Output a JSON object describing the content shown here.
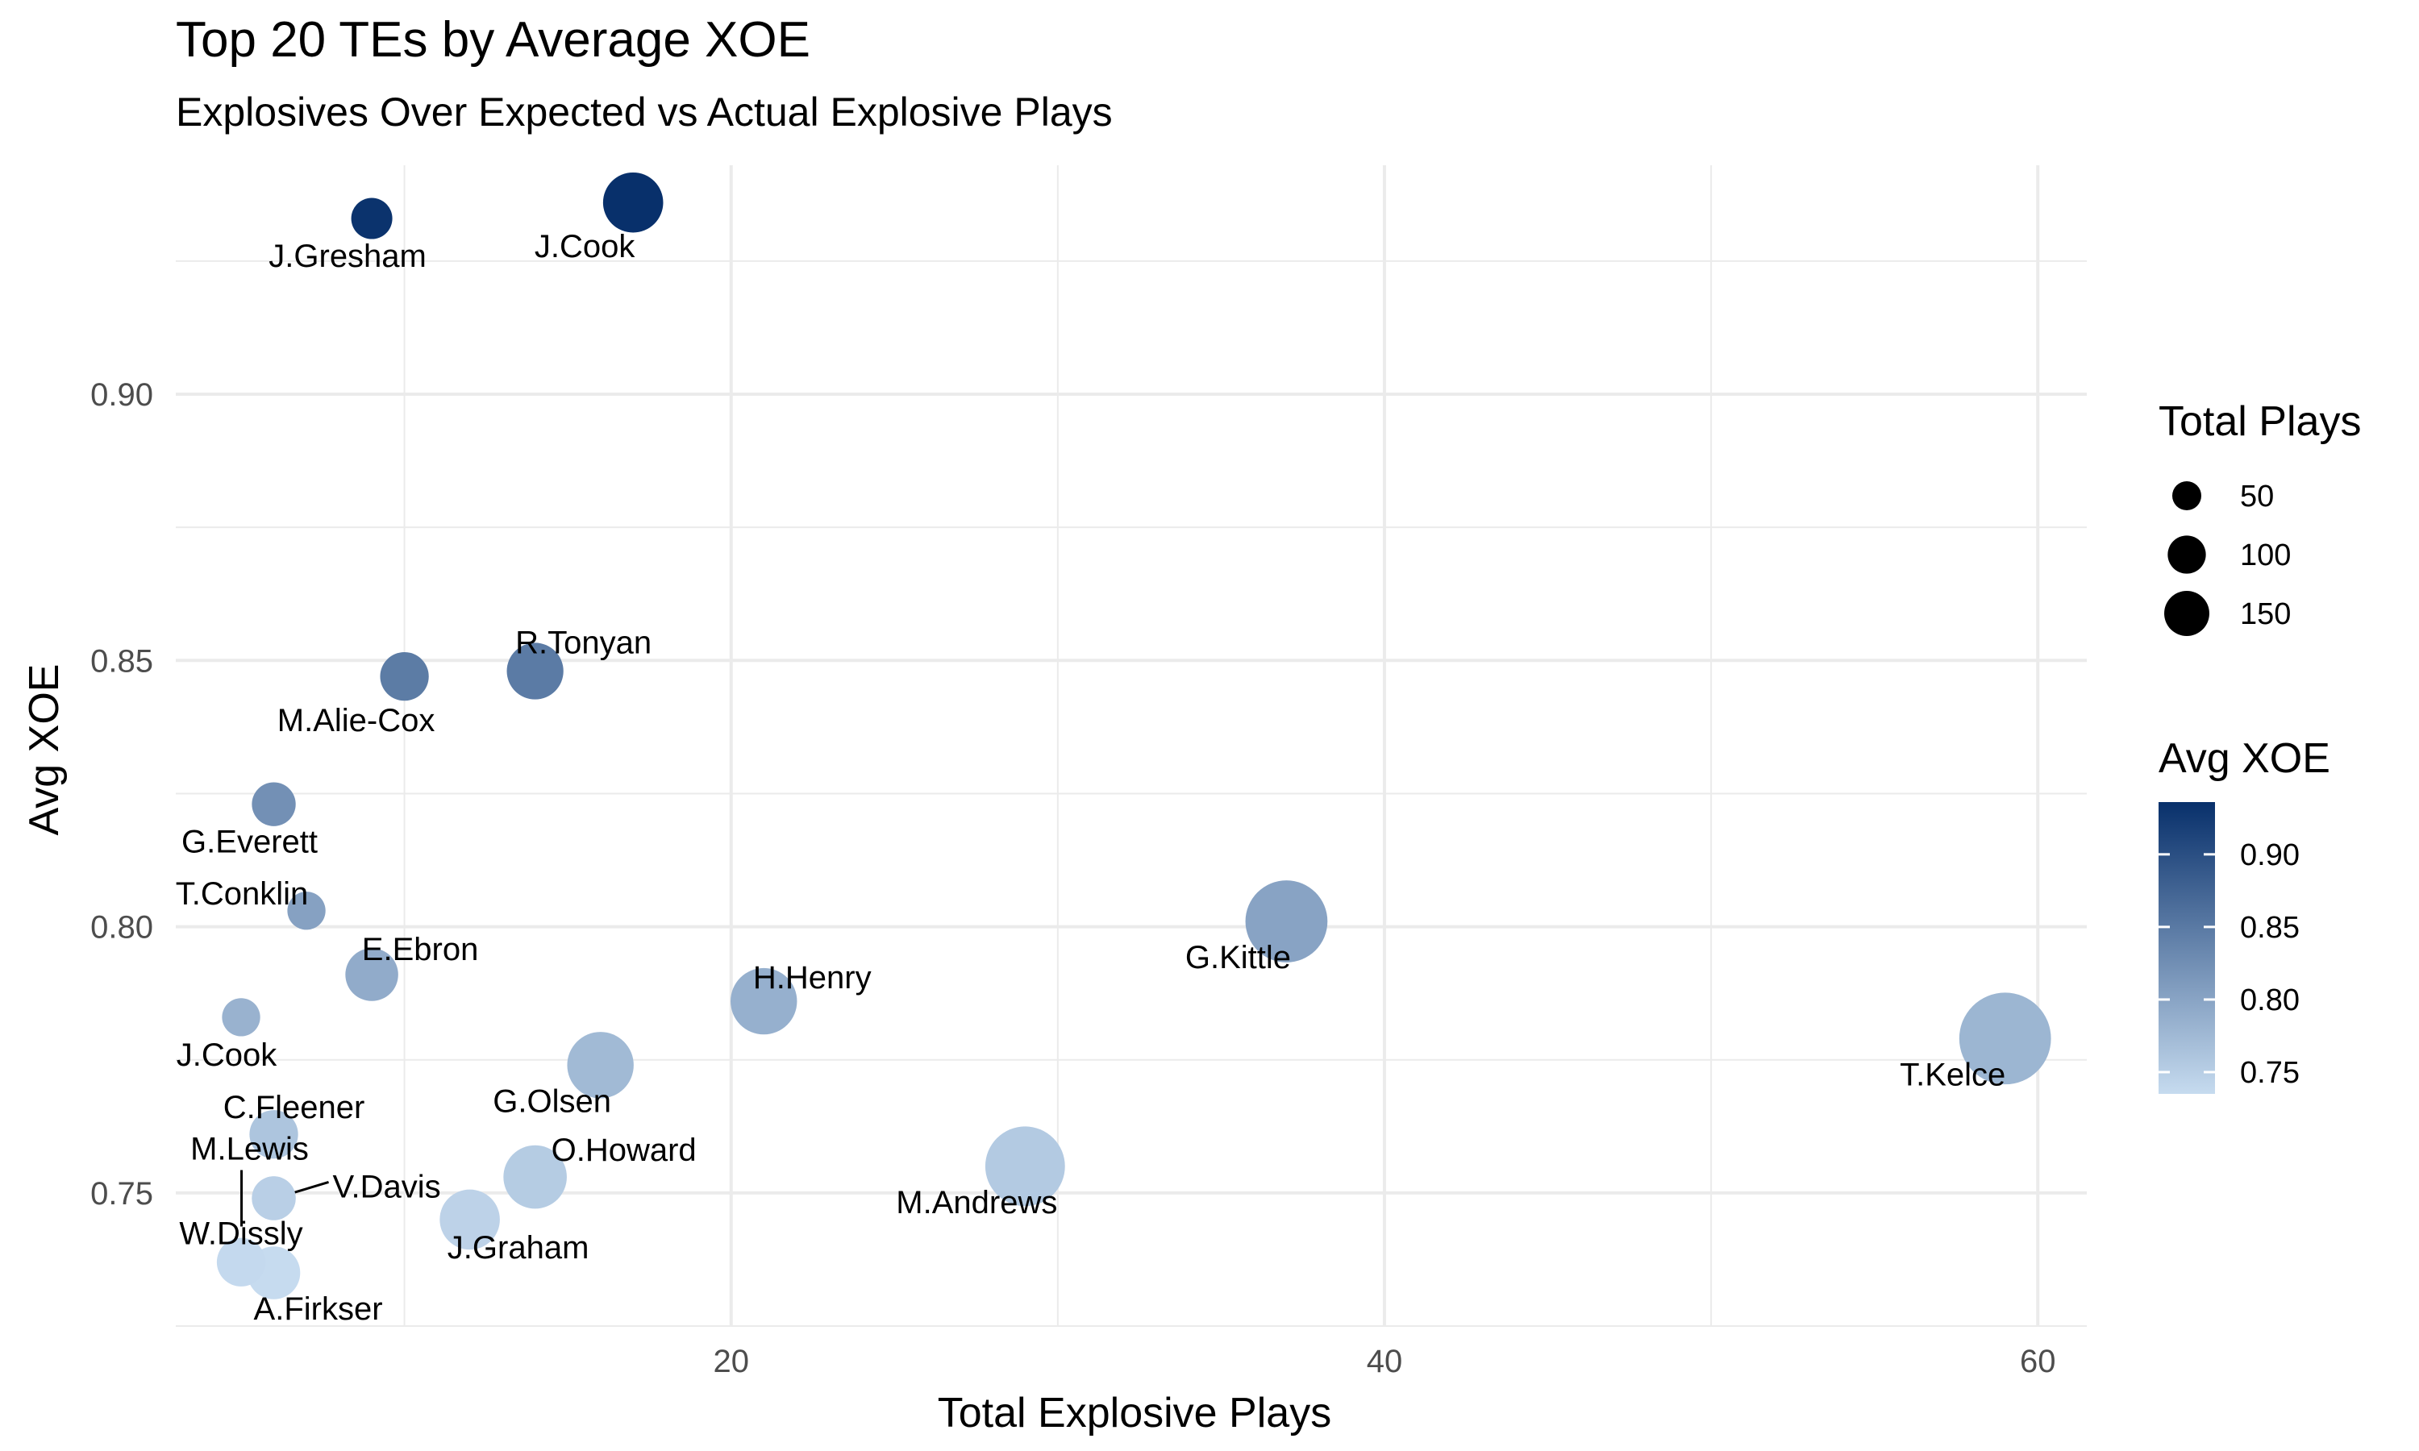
{
  "chart_data": {
    "type": "scatter",
    "title": "Top 20 TEs by Average XOE",
    "subtitle": "Explosives Over Expected vs Actual Explosive Plays",
    "xlabel": "Total Explosive Plays",
    "ylabel": "Avg XOE",
    "xlim": [
      3,
      61.5
    ],
    "ylim": [
      0.725,
      0.943
    ],
    "x_ticks": [
      20,
      40,
      60
    ],
    "y_ticks": [
      0.75,
      0.8,
      0.85,
      0.9
    ],
    "x_tick_labels": [
      "20",
      "40",
      "60"
    ],
    "y_tick_labels": [
      "0.75",
      "0.80",
      "0.85",
      "0.90"
    ],
    "grid": true,
    "size_legend": {
      "title": "Total Plays",
      "values": [
        50,
        100,
        150
      ],
      "labels": [
        "50",
        "100",
        "150"
      ]
    },
    "color_legend": {
      "title": "Avg XOE",
      "range": [
        0.735,
        0.936
      ],
      "low_color": "#c6dbef",
      "high_color": "#08306b",
      "ticks": [
        0.75,
        0.8,
        0.85,
        0.9
      ],
      "tick_labels": [
        "0.75",
        "0.80",
        "0.85",
        "0.90"
      ]
    },
    "points": [
      {
        "name": "J.Cook",
        "x": 17,
        "y": 0.936,
        "plays": 70
      },
      {
        "name": "J.Gresham",
        "x": 9,
        "y": 0.933,
        "plays": 25
      },
      {
        "name": "R.Tonyan",
        "x": 14,
        "y": 0.848,
        "plays": 60
      },
      {
        "name": "M.Alie-Cox",
        "x": 10,
        "y": 0.847,
        "plays": 40
      },
      {
        "name": "G.Everett",
        "x": 6,
        "y": 0.823,
        "plays": 30
      },
      {
        "name": "T.Conklin",
        "x": 7,
        "y": 0.803,
        "plays": 20
      },
      {
        "name": "G.Kittle",
        "x": 37,
        "y": 0.801,
        "plays": 150
      },
      {
        "name": "E.Ebron",
        "x": 9,
        "y": 0.791,
        "plays": 50
      },
      {
        "name": "H.Henry",
        "x": 21,
        "y": 0.786,
        "plays": 90
      },
      {
        "name": "J.Cook",
        "x": 5,
        "y": 0.783,
        "plays": 20
      },
      {
        "name": "T.Kelce",
        "x": 59,
        "y": 0.779,
        "plays": 195
      },
      {
        "name": "G.Olsen",
        "x": 16,
        "y": 0.774,
        "plays": 90
      },
      {
        "name": "C.Fleener",
        "x": 6,
        "y": 0.761,
        "plays": 40
      },
      {
        "name": "M.Andrews",
        "x": 29,
        "y": 0.755,
        "plays": 140
      },
      {
        "name": "O.Howard",
        "x": 14,
        "y": 0.753,
        "plays": 80
      },
      {
        "name": "V.Davis",
        "x": 6,
        "y": 0.749,
        "plays": 30
      },
      {
        "name": "J.Graham",
        "x": 12,
        "y": 0.745,
        "plays": 70
      },
      {
        "name": "M.Lewis",
        "x": 6,
        "y": 0.749,
        "plays": 30
      },
      {
        "name": "W.Dissly",
        "x": 5,
        "y": 0.737,
        "plays": 40
      },
      {
        "name": "A.Firkser",
        "x": 6,
        "y": 0.735,
        "plays": 50
      }
    ]
  }
}
